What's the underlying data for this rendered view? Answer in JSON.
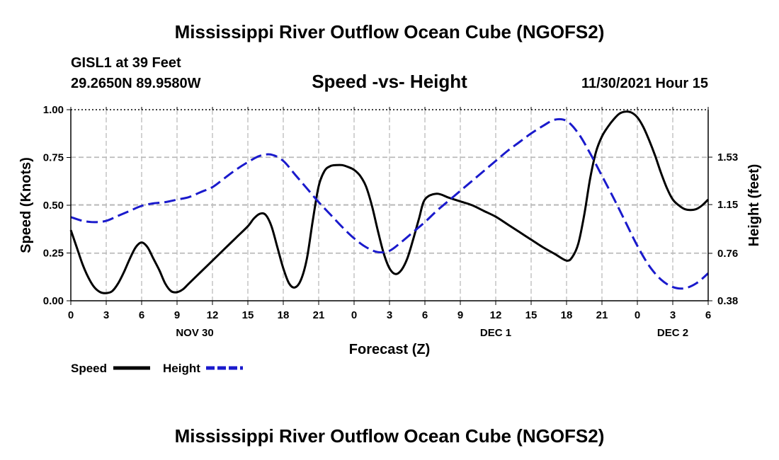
{
  "header": {
    "title": "Mississippi River Outflow Ocean Cube (NGOFS2)",
    "station": "GISL1 at 39 Feet",
    "coords": "29.2650N  89.9580W",
    "subtitle": "Speed -vs- Height",
    "timestamp": "11/30/2021 Hour 15"
  },
  "footer": {
    "title": "Mississippi River Outflow Ocean Cube (NGOFS2)"
  },
  "colors": {
    "speed": "#000000",
    "height": "#1a1acc",
    "grid": "#bbbbbb"
  },
  "chart_data": {
    "type": "line",
    "title": "Speed -vs- Height",
    "xlabel": "Forecast (Z)",
    "ylabel": "Speed (Knots)",
    "y2label": "Height (feet)",
    "xlim": [
      0,
      54
    ],
    "ylim": [
      0,
      1.0
    ],
    "y2lim": [
      0.38,
      1.91
    ],
    "x_ticks": [
      0,
      3,
      6,
      9,
      12,
      15,
      18,
      21,
      24,
      27,
      30,
      33,
      36,
      39,
      42,
      45,
      48,
      51,
      54
    ],
    "x_tick_labels": [
      "0",
      "3",
      "6",
      "9",
      "12",
      "15",
      "18",
      "21",
      "0",
      "3",
      "6",
      "9",
      "12",
      "15",
      "18",
      "21",
      "0",
      "3",
      "6"
    ],
    "day_labels": [
      {
        "label": "NOV 30",
        "x": 10.5
      },
      {
        "label": "DEC 1",
        "x": 36
      },
      {
        "label": "DEC 2",
        "x": 51
      }
    ],
    "y_ticks": [
      0.0,
      0.25,
      0.5,
      0.75,
      1.0
    ],
    "y_tick_labels": [
      "0.00",
      "0.25",
      "0.50",
      "0.75",
      "1.00"
    ],
    "y2_ticks": [
      0.38,
      0.76,
      1.15,
      1.53
    ],
    "y2_tick_labels": [
      "0.38",
      "0.76",
      "1.15",
      "1.53"
    ],
    "series": [
      {
        "name": "Speed",
        "axis": "left",
        "style": "solid",
        "x": [
          0,
          0.5,
          1,
          1.5,
          2,
          2.5,
          3,
          3.5,
          4,
          4.5,
          5,
          5.5,
          6,
          6.5,
          7,
          7.5,
          8,
          8.5,
          9,
          9.5,
          10,
          11,
          12,
          13,
          14,
          15,
          15.5,
          16,
          16.5,
          17,
          17.5,
          18,
          18.5,
          19,
          19.5,
          20,
          20.5,
          21,
          21.5,
          22,
          22.5,
          23,
          23.5,
          24,
          24.5,
          25,
          25.5,
          26,
          26.5,
          27,
          27.5,
          28,
          28.5,
          29,
          29.5,
          30,
          31,
          32,
          33,
          34,
          35,
          36,
          37,
          38,
          39,
          40,
          41,
          42,
          42.5,
          43,
          43.5,
          44,
          44.5,
          45,
          45.5,
          46,
          46.5,
          47,
          47.5,
          48,
          48.5,
          49,
          49.5,
          50,
          50.5,
          51,
          51.5,
          52,
          52.5,
          53,
          53.5,
          54
        ],
        "values": [
          0.37,
          0.28,
          0.19,
          0.12,
          0.07,
          0.045,
          0.04,
          0.05,
          0.09,
          0.15,
          0.22,
          0.28,
          0.305,
          0.28,
          0.22,
          0.16,
          0.09,
          0.05,
          0.045,
          0.06,
          0.09,
          0.15,
          0.21,
          0.27,
          0.33,
          0.39,
          0.43,
          0.455,
          0.45,
          0.39,
          0.28,
          0.17,
          0.09,
          0.07,
          0.11,
          0.22,
          0.42,
          0.6,
          0.68,
          0.705,
          0.71,
          0.71,
          0.7,
          0.685,
          0.655,
          0.6,
          0.5,
          0.37,
          0.25,
          0.17,
          0.14,
          0.16,
          0.22,
          0.32,
          0.43,
          0.53,
          0.56,
          0.54,
          0.52,
          0.5,
          0.47,
          0.44,
          0.4,
          0.36,
          0.32,
          0.28,
          0.245,
          0.21,
          0.23,
          0.3,
          0.45,
          0.64,
          0.78,
          0.86,
          0.91,
          0.95,
          0.98,
          0.99,
          0.985,
          0.96,
          0.91,
          0.84,
          0.76,
          0.67,
          0.59,
          0.53,
          0.5,
          0.48,
          0.475,
          0.48,
          0.5,
          0.53
        ]
      },
      {
        "name": "Height",
        "axis": "right",
        "style": "dashed",
        "x": [
          0,
          1,
          2,
          3,
          4,
          5,
          6,
          7,
          8,
          9,
          10,
          11,
          12,
          13,
          14,
          15,
          16,
          17,
          18,
          19,
          20,
          21,
          22,
          23,
          24,
          25,
          26,
          27,
          28,
          29,
          30,
          31,
          32,
          33,
          34,
          35,
          36,
          37,
          38,
          39,
          40,
          41,
          42,
          43,
          44,
          45,
          46,
          47,
          48,
          49,
          50,
          51,
          52,
          53,
          54
        ],
        "values": [
          1.05,
          1.02,
          1.01,
          1.02,
          1.06,
          1.1,
          1.14,
          1.16,
          1.17,
          1.19,
          1.21,
          1.25,
          1.29,
          1.36,
          1.43,
          1.49,
          1.54,
          1.55,
          1.5,
          1.39,
          1.28,
          1.17,
          1.07,
          0.97,
          0.88,
          0.81,
          0.77,
          0.78,
          0.85,
          0.93,
          1.01,
          1.1,
          1.18,
          1.26,
          1.34,
          1.42,
          1.5,
          1.58,
          1.65,
          1.72,
          1.78,
          1.83,
          1.82,
          1.72,
          1.56,
          1.38,
          1.2,
          1.01,
          0.82,
          0.66,
          0.55,
          0.49,
          0.48,
          0.52,
          0.6
        ]
      }
    ],
    "legend": [
      {
        "label": "Speed",
        "color": "#000000",
        "style": "solid"
      },
      {
        "label": "Height",
        "color": "#1a1acc",
        "style": "dashed"
      }
    ]
  }
}
